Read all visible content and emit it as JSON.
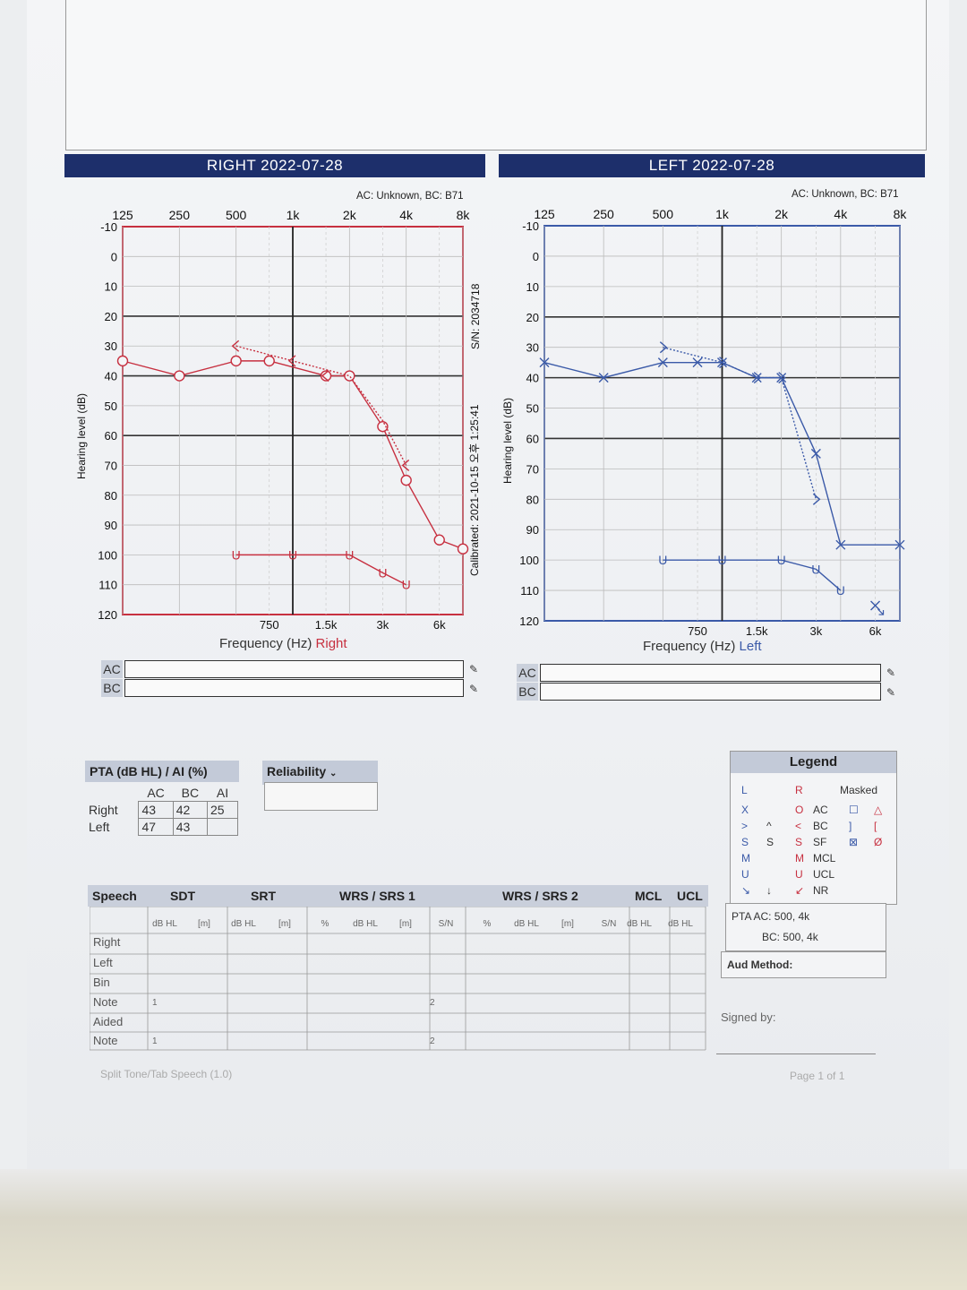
{
  "right_panel": {
    "header": "RIGHT  2022-07-28",
    "acbc_note": "AC: Unknown, BC: B71",
    "side_label": "Right",
    "ac_label": "AC",
    "bc_label": "BC",
    "serial": "S/N: 2034718",
    "calibrated": "Calibrated: 2021-10-15 오후 1:25:41"
  },
  "left_panel": {
    "header": "LEFT  2022-07-28",
    "acbc_note": "AC: Unknown, BC: B71",
    "side_label": "Left",
    "ac_label": "AC",
    "bc_label": "BC"
  },
  "axis_text": {
    "ylabel": "Hearing level (dB)",
    "xlabel": "Frequency (Hz)",
    "top_ticks": [
      "125",
      "250",
      "500",
      "1k",
      "2k",
      "4k",
      "8k"
    ],
    "bottom_ticks": [
      "750",
      "1.5k",
      "3k",
      "6k"
    ],
    "y_ticks": [
      "-10",
      "0",
      "10",
      "20",
      "30",
      "40",
      "50",
      "60",
      "70",
      "80",
      "90",
      "100",
      "110",
      "120"
    ]
  },
  "chart_data": [
    {
      "type": "line",
      "title": "RIGHT  2022-07-28",
      "xlabel": "Frequency (Hz)",
      "ylabel": "Hearing level (dB)",
      "x_scale": "log",
      "xlim": [
        125,
        8000
      ],
      "ylim": [
        120,
        -10
      ],
      "y_inverted": true,
      "color": "#c73040",
      "series": [
        {
          "name": "AC",
          "symbol": "O",
          "style": "solid",
          "x": [
            125,
            250,
            500,
            750,
            1500,
            2000,
            3000,
            4000,
            6000,
            8000
          ],
          "y": [
            35,
            40,
            35,
            35,
            40,
            40,
            57,
            75,
            95,
            98
          ]
        },
        {
          "name": "AC masked-line",
          "symbol": "dotted",
          "style": "dotted",
          "x": [
            500,
            1000,
            2000,
            3000,
            4000
          ],
          "y": [
            30,
            35,
            40,
            55,
            70
          ]
        },
        {
          "name": "BC",
          "symbol": "<",
          "style": "none",
          "x": [
            500,
            1000,
            1500,
            4000
          ],
          "y": [
            30,
            35,
            40,
            70
          ]
        },
        {
          "name": "UCL",
          "symbol": "U",
          "style": "solid",
          "x": [
            500,
            1000,
            2000,
            3000,
            4000
          ],
          "y": [
            100,
            100,
            100,
            106,
            110
          ]
        }
      ]
    },
    {
      "type": "line",
      "title": "LEFT  2022-07-28",
      "xlabel": "Frequency (Hz)",
      "ylabel": "Hearing level (dB)",
      "x_scale": "log",
      "xlim": [
        125,
        8000
      ],
      "ylim": [
        120,
        -10
      ],
      "y_inverted": true,
      "color": "#3b5aa8",
      "series": [
        {
          "name": "AC",
          "symbol": "X",
          "style": "solid",
          "x": [
            125,
            250,
            500,
            750,
            1000,
            1500,
            2000,
            3000,
            4000,
            8000
          ],
          "y": [
            35,
            40,
            35,
            35,
            35,
            40,
            40,
            65,
            95,
            95
          ]
        },
        {
          "name": "BC",
          "symbol": ">",
          "style": "dotted",
          "x": [
            500,
            1000,
            1500,
            2000,
            3000
          ],
          "y": [
            30,
            35,
            40,
            40,
            80
          ]
        },
        {
          "name": "UCL",
          "symbol": "U",
          "style": "solid",
          "x": [
            500,
            1000,
            2000,
            3000,
            4000
          ],
          "y": [
            100,
            100,
            100,
            103,
            110
          ]
        },
        {
          "name": "AC NR",
          "symbol": "X↘",
          "style": "none",
          "x": [
            6000
          ],
          "y": [
            115
          ]
        }
      ]
    }
  ],
  "pta": {
    "title": "PTA (dB HL) / AI (%)",
    "col_headers": [
      "AC",
      "BC",
      "AI"
    ],
    "rows": [
      {
        "label": "Right",
        "ac": "43",
        "bc": "42",
        "ai": "25"
      },
      {
        "label": "Left",
        "ac": "47",
        "bc": "43",
        "ai": ""
      }
    ]
  },
  "reliability": {
    "title": "Reliability",
    "value": ""
  },
  "speech": {
    "title": "Speech",
    "groups": [
      "SDT",
      "SRT",
      "WRS / SRS 1",
      "WRS / SRS 2",
      "MCL",
      "UCL"
    ],
    "subheaders": [
      "dB HL",
      "[m]",
      "dB HL",
      "[m]",
      "%",
      "dB HL",
      "[m]",
      "S/N",
      "%",
      "dB HL",
      "[m]",
      "S/N",
      "dB HL",
      "dB HL"
    ],
    "row_labels": [
      "Right",
      "Left",
      "Bin",
      "Note",
      "Aided",
      "Note"
    ],
    "note_marks": [
      "1",
      "2"
    ]
  },
  "legend": {
    "title": "Legend",
    "cols": [
      "L",
      "R",
      "Masked"
    ],
    "rows": [
      {
        "l": "X",
        "r": "O",
        "name": "AC",
        "masked_l": "☐",
        "masked_r": "△"
      },
      {
        "l": ">",
        "mid": "^",
        "r": "<",
        "name": "BC",
        "masked_l": "]",
        "masked_r": "["
      },
      {
        "l": "S",
        "mid": "S",
        "r": "S",
        "name": "SF",
        "masked_l": "⊠",
        "masked_r": "Ø"
      },
      {
        "l": "M",
        "r": "M",
        "name": "MCL"
      },
      {
        "l": "U",
        "r": "U",
        "name": "UCL"
      },
      {
        "l": "↘",
        "mid": "↓",
        "r": "↙",
        "name": "NR"
      }
    ],
    "pta_line1": "PTA  AC: 500, 4k",
    "pta_line2": "BC: 500, 4k",
    "aud_method": "Aud Method:"
  },
  "signed_by": "Signed by:",
  "footer_left": "Split Tone/Tab Speech (1.0)",
  "footer_right": "Page 1 of 1"
}
